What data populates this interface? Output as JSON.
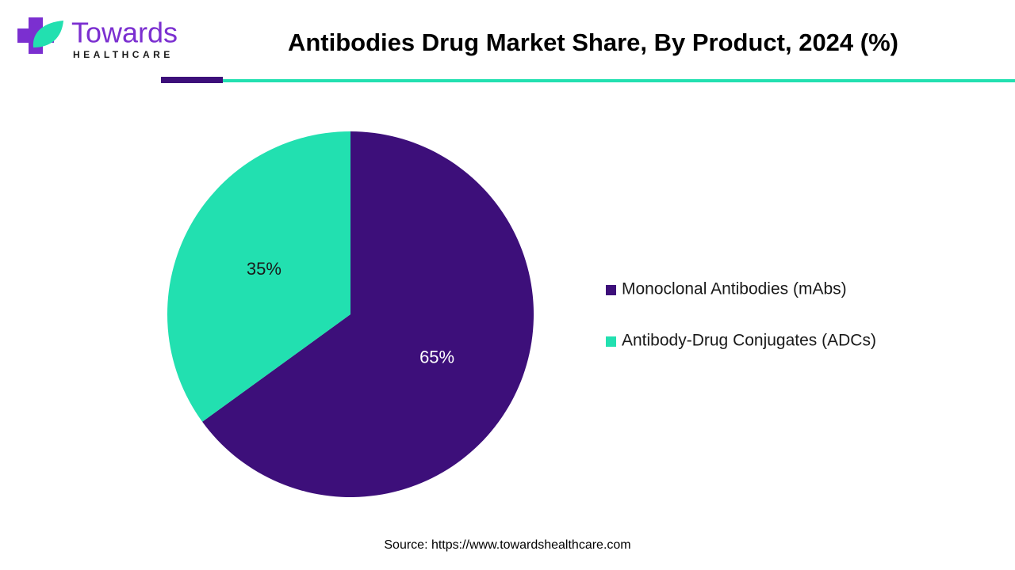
{
  "logo": {
    "name": "Towards",
    "tagline": "HEALTHCARE"
  },
  "chart_data": {
    "type": "pie",
    "title": "Antibodies Drug Market Share, By Product, 2024 (%)",
    "categories": [
      "Monoclonal Antibodies (mAbs)",
      "Antibody-Drug Conjugates (ADCs)"
    ],
    "values": [
      65,
      35
    ],
    "value_labels": [
      "65%",
      "35%"
    ],
    "colors": [
      "#3d0f7a",
      "#22e0b0"
    ],
    "label_colors": [
      "#ffffff",
      "#1a1a1a"
    ],
    "legend": "right",
    "source": "Source: https://www.towardshealthcare.com"
  }
}
